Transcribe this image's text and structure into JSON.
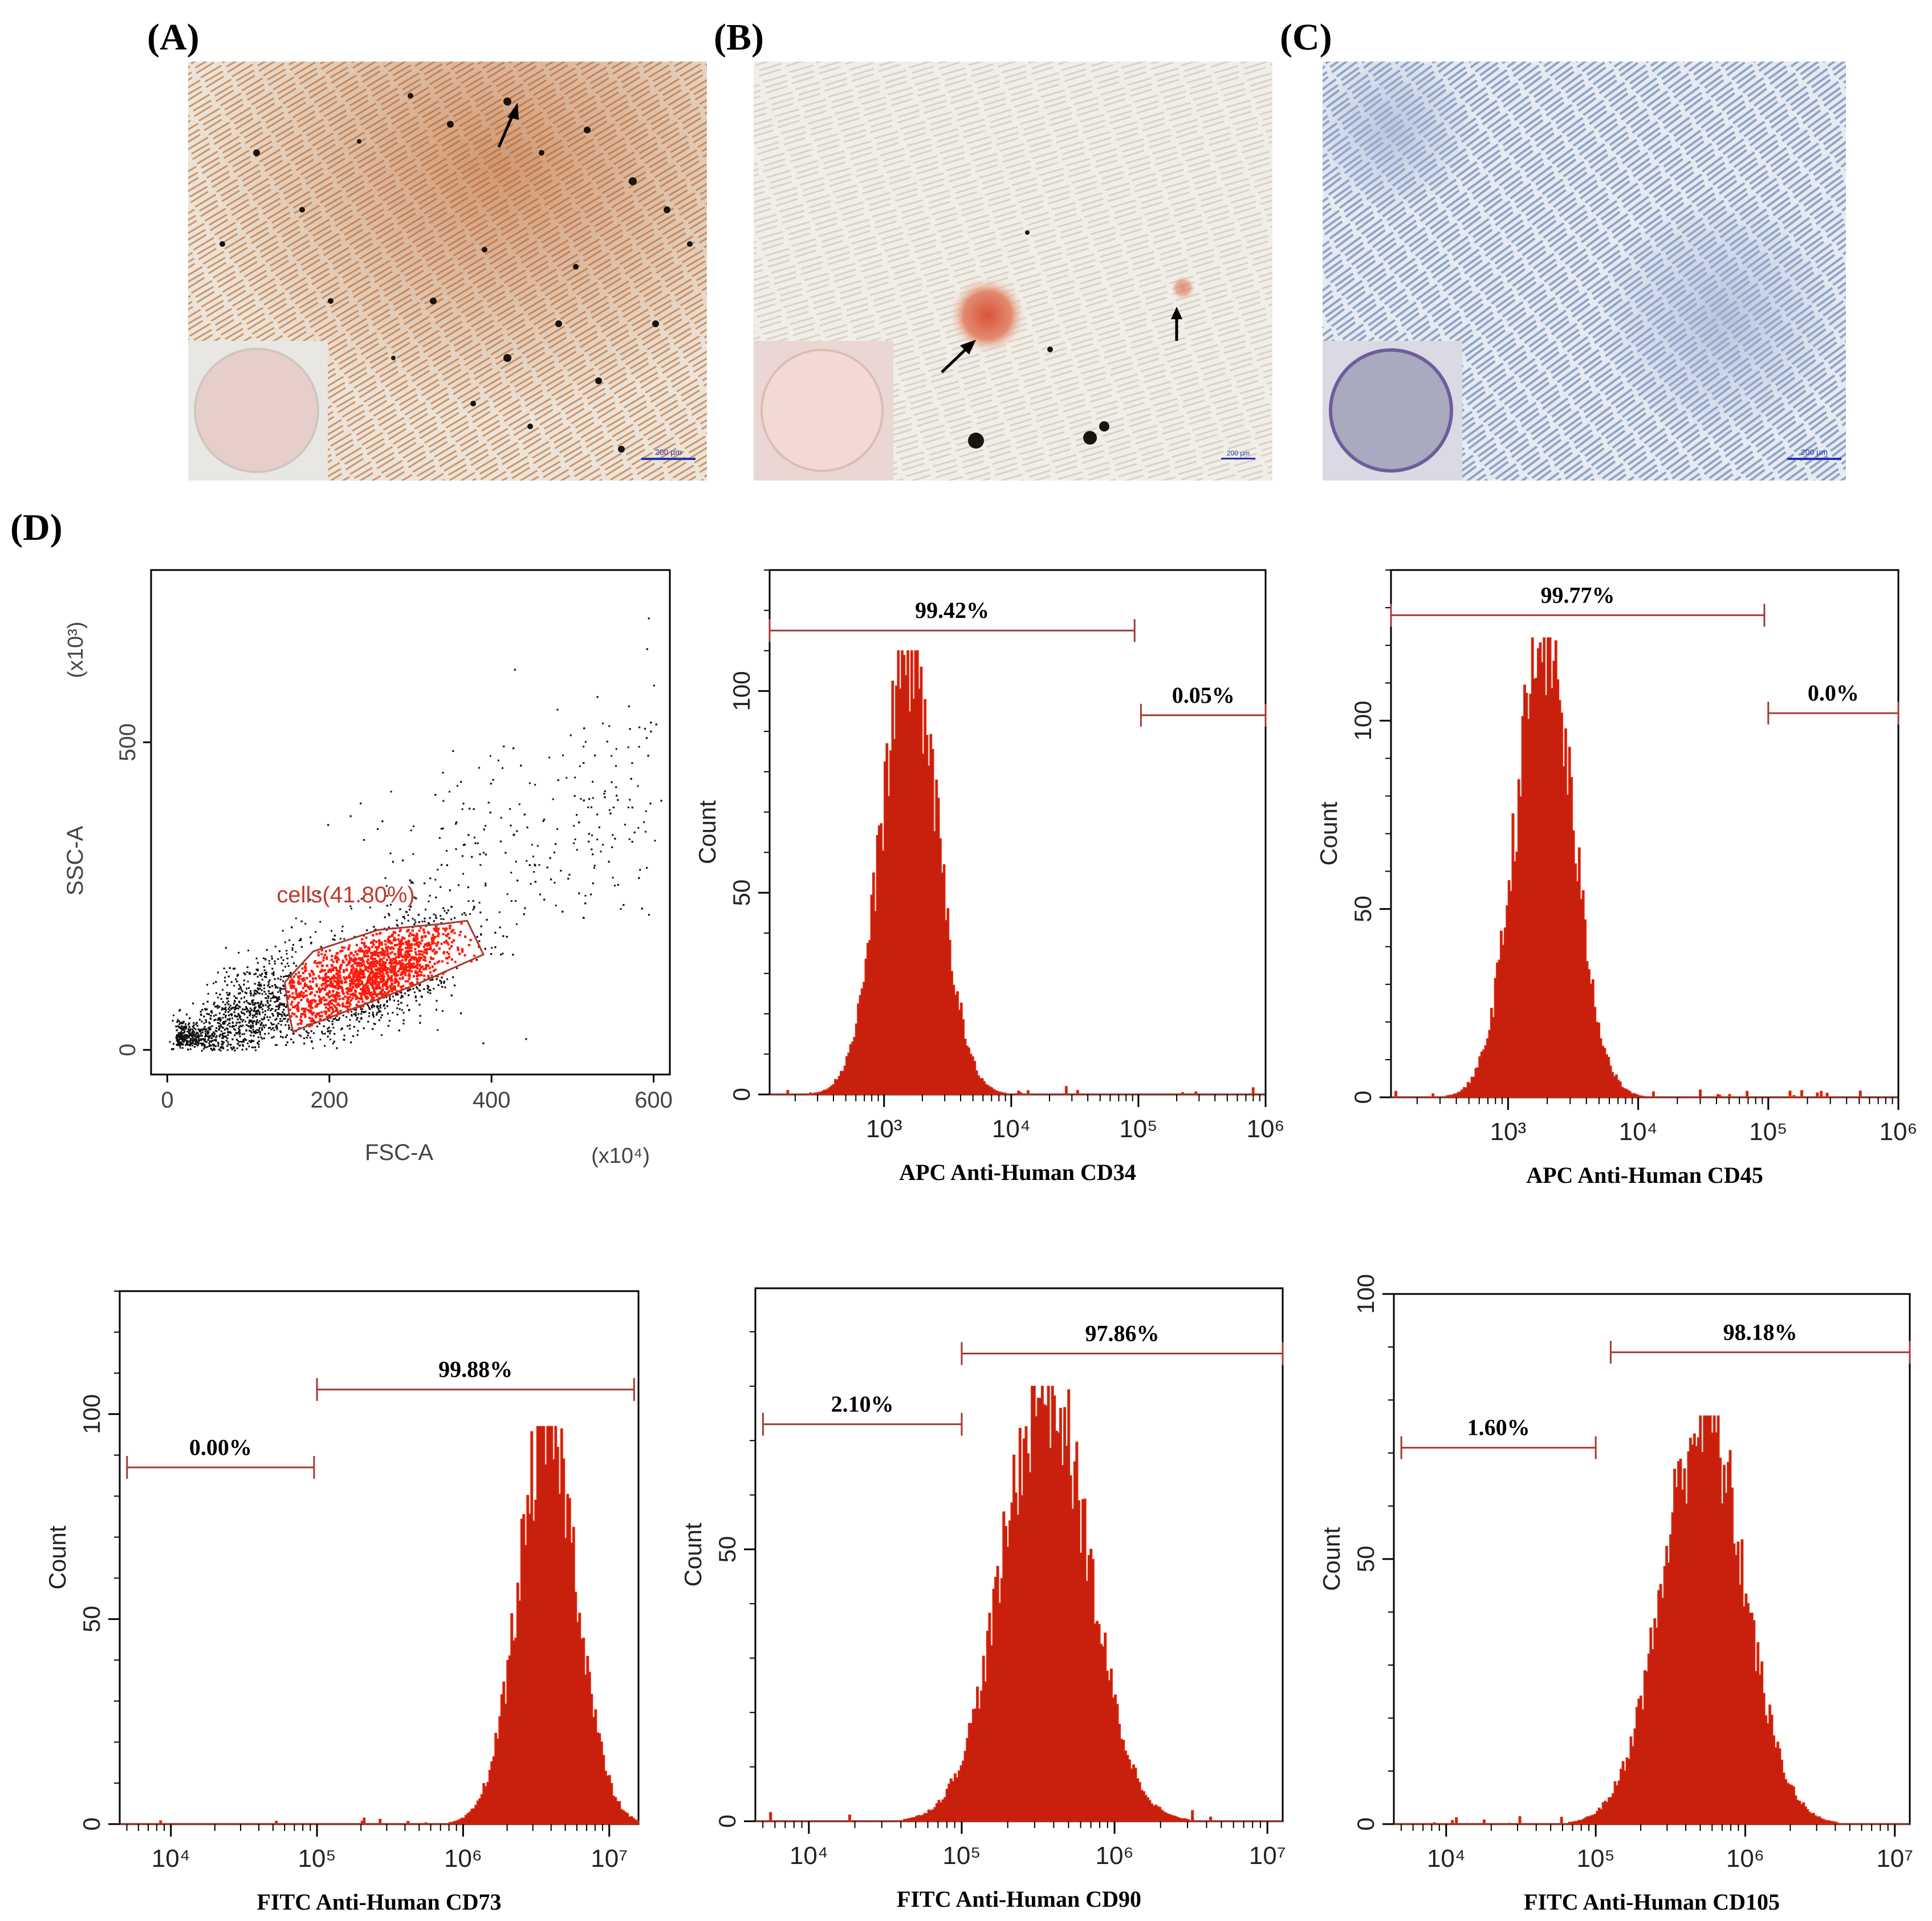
{
  "panels": {
    "A": {
      "label": "(A)",
      "scale_bar": "200 µm"
    },
    "B": {
      "label": "(B)",
      "scale_bar": "200 µm"
    },
    "C": {
      "label": "(C)",
      "scale_bar": "200 µm"
    },
    "D": {
      "label": "(D)"
    }
  },
  "colors": {
    "histogram_fill": "#c8200c",
    "gate_line": "#a33a30",
    "gated_cells": "#ff1a0a",
    "dots": "#111111"
  },
  "chart_data": [
    {
      "id": "scatter",
      "type": "scatter",
      "xlabel": "FSC-A",
      "ylabel": "SSC-A",
      "x_multiplier": "(x10⁴)",
      "y_multiplier": "(x10³)",
      "xlim": [
        -20,
        620
      ],
      "ylim": [
        -40,
        780
      ],
      "x_ticks": [
        "0",
        "200",
        "400",
        "600"
      ],
      "y_ticks": [
        "0",
        "500"
      ],
      "gate": {
        "name": "cells",
        "percent": "(41.80%)",
        "label": "cells(41.80%)",
        "polygon": [
          [
            150,
            60
          ],
          [
            145,
            110
          ],
          [
            180,
            160
          ],
          [
            260,
            195
          ],
          [
            340,
            205
          ],
          [
            370,
            210
          ],
          [
            390,
            155
          ],
          [
            305,
            105
          ],
          [
            155,
            30
          ]
        ]
      }
    },
    {
      "id": "cd34",
      "type": "area",
      "title": "APC Anti-Human CD34",
      "ylabel": "Count",
      "xscale": "log",
      "xlim": [
        2.1,
        6.0
      ],
      "ylim": [
        0,
        130
      ],
      "x_ticks": [
        "10³",
        "10⁴",
        "10⁵",
        "10⁶"
      ],
      "y_ticks": [
        "0",
        "50",
        "100"
      ],
      "peak": {
        "center": 3.2,
        "sigma": 0.22,
        "height": 110
      },
      "gates": [
        {
          "label": "99.42%",
          "from": 2.1,
          "to": 4.97,
          "level": 115
        },
        {
          "label": "0.05%",
          "from": 5.02,
          "to": 6.0,
          "level": 94
        }
      ]
    },
    {
      "id": "cd45",
      "type": "area",
      "title": "APC Anti-Human CD45",
      "ylabel": "Count",
      "xscale": "log",
      "xlim": [
        2.1,
        6.0
      ],
      "ylim": [
        0,
        140
      ],
      "x_ticks": [
        "10³",
        "10⁴",
        "10⁵",
        "10⁶"
      ],
      "y_ticks": [
        "0",
        "50",
        "100"
      ],
      "peak": {
        "center": 3.28,
        "sigma": 0.22,
        "height": 122
      },
      "gates": [
        {
          "label": "99.77%",
          "from": 2.1,
          "to": 4.97,
          "level": 128
        },
        {
          "label": "0.0%",
          "from": 5.0,
          "to": 6.0,
          "level": 102
        }
      ]
    },
    {
      "id": "cd73",
      "type": "area",
      "title": "FITC Anti-Human CD73",
      "ylabel": "Count",
      "xscale": "log",
      "xlim": [
        3.65,
        7.2
      ],
      "ylim": [
        0,
        130
      ],
      "x_ticks": [
        "10⁴",
        "10⁵",
        "10⁶",
        "10⁷"
      ],
      "y_ticks": [
        "0",
        "50",
        "100"
      ],
      "peak": {
        "center": 6.58,
        "sigma": 0.2,
        "height": 97
      },
      "gates": [
        {
          "label": "0.00%",
          "from": 3.7,
          "to": 4.98,
          "level": 87
        },
        {
          "label": "99.88%",
          "from": 5.0,
          "to": 7.17,
          "level": 106
        }
      ]
    },
    {
      "id": "cd90",
      "type": "area",
      "title": "FITC Anti-Human CD90",
      "ylabel": "Count",
      "xscale": "log",
      "xlim": [
        3.65,
        7.1
      ],
      "ylim": [
        0,
        98
      ],
      "x_ticks": [
        "10⁴",
        "10⁵",
        "10⁶",
        "10⁷"
      ],
      "y_ticks": [
        "0",
        "50"
      ],
      "peak": {
        "center": 5.55,
        "sigma": 0.28,
        "height": 80
      },
      "gates": [
        {
          "label": "2.10%",
          "from": 3.7,
          "to": 5.0,
          "level": 73
        },
        {
          "label": "97.86%",
          "from": 5.0,
          "to": 7.1,
          "level": 86
        }
      ]
    },
    {
      "id": "cd105",
      "type": "area",
      "title": "FITC Anti-Human CD105",
      "ylabel": "Count",
      "xscale": "log",
      "xlim": [
        3.65,
        7.1
      ],
      "ylim": [
        0,
        100
      ],
      "x_ticks": [
        "10⁴",
        "10⁵",
        "10⁶",
        "10⁷"
      ],
      "y_ticks": [
        "0",
        "50",
        "100"
      ],
      "peak": {
        "center": 5.72,
        "sigma": 0.27,
        "height": 77
      },
      "gates": [
        {
          "label": "1.60%",
          "from": 3.7,
          "to": 5.0,
          "level": 71
        },
        {
          "label": "98.18%",
          "from": 5.1,
          "to": 7.1,
          "level": 89
        }
      ]
    }
  ]
}
